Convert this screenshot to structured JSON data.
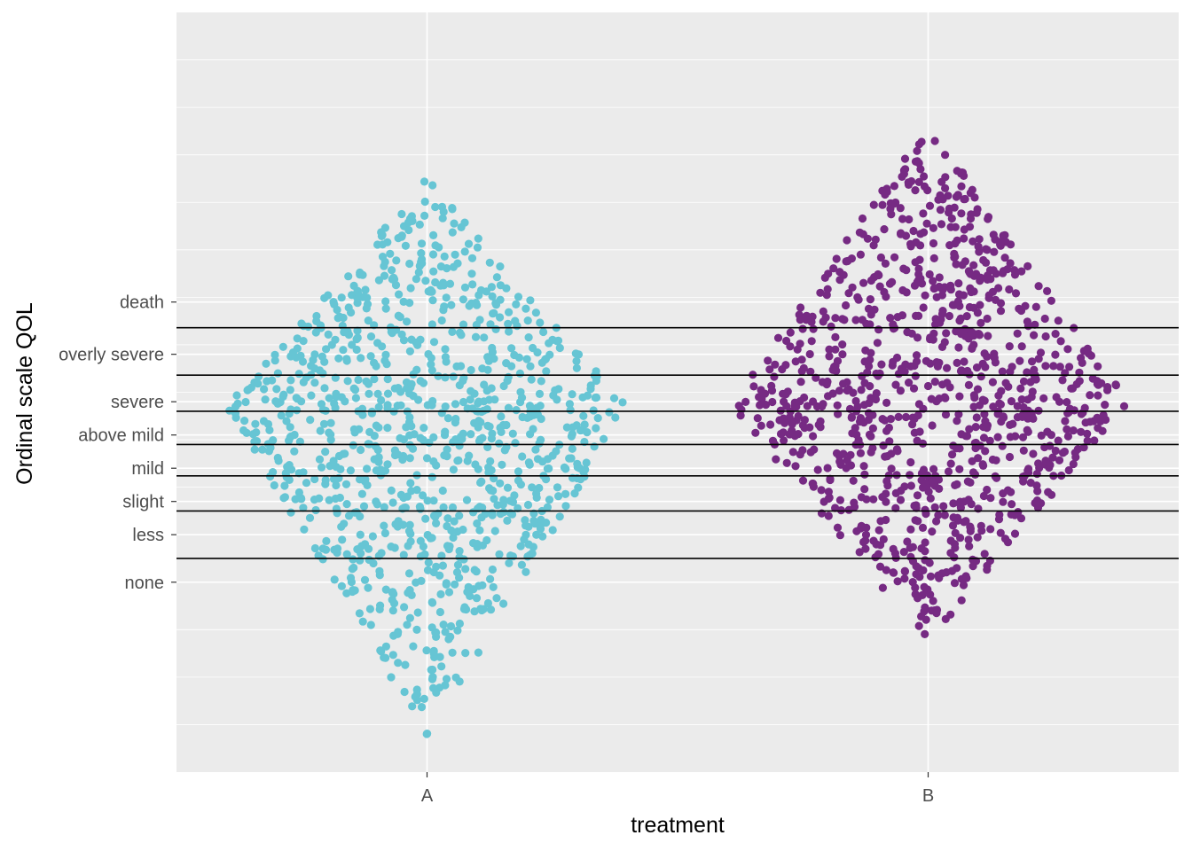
{
  "chart_data": {
    "type": "scatter",
    "subtype": "beeswarm",
    "title": "",
    "xlabel": "treatment",
    "ylabel": "Ordinal scale QOL",
    "categories": [
      "A",
      "B"
    ],
    "y_ticks": [
      {
        "label": "none",
        "value": 1.0
      },
      {
        "label": "less",
        "value": 1.5
      },
      {
        "label": "slight",
        "value": 1.85
      },
      {
        "label": "mild",
        "value": 2.2
      },
      {
        "label": "above mild",
        "value": 2.55
      },
      {
        "label": "severe",
        "value": 2.9
      },
      {
        "label": "overly severe",
        "value": 3.4
      },
      {
        "label": "death",
        "value": 3.95
      }
    ],
    "cutpoints": [
      1.25,
      1.75,
      2.12,
      2.45,
      2.8,
      3.18,
      3.68
    ],
    "ylim": [
      -1.0,
      7.0
    ],
    "series": [
      {
        "category": "A",
        "color": "#66c5d4",
        "n": 1000,
        "center": 2.85,
        "ymin": -0.65,
        "ymax": 5.25,
        "peak": 2.85,
        "max_halfwidth": 0.4
      },
      {
        "category": "B",
        "color": "#762a83",
        "n": 1000,
        "center": 2.9,
        "ymin": 0.35,
        "ymax": 5.82,
        "peak": 2.9,
        "max_halfwidth": 0.4
      }
    ],
    "grid": true,
    "legend": "none",
    "theme": {
      "panel_bg": "#ebebeb",
      "grid_color": "#ffffff",
      "cutline_color": "#000000"
    }
  }
}
